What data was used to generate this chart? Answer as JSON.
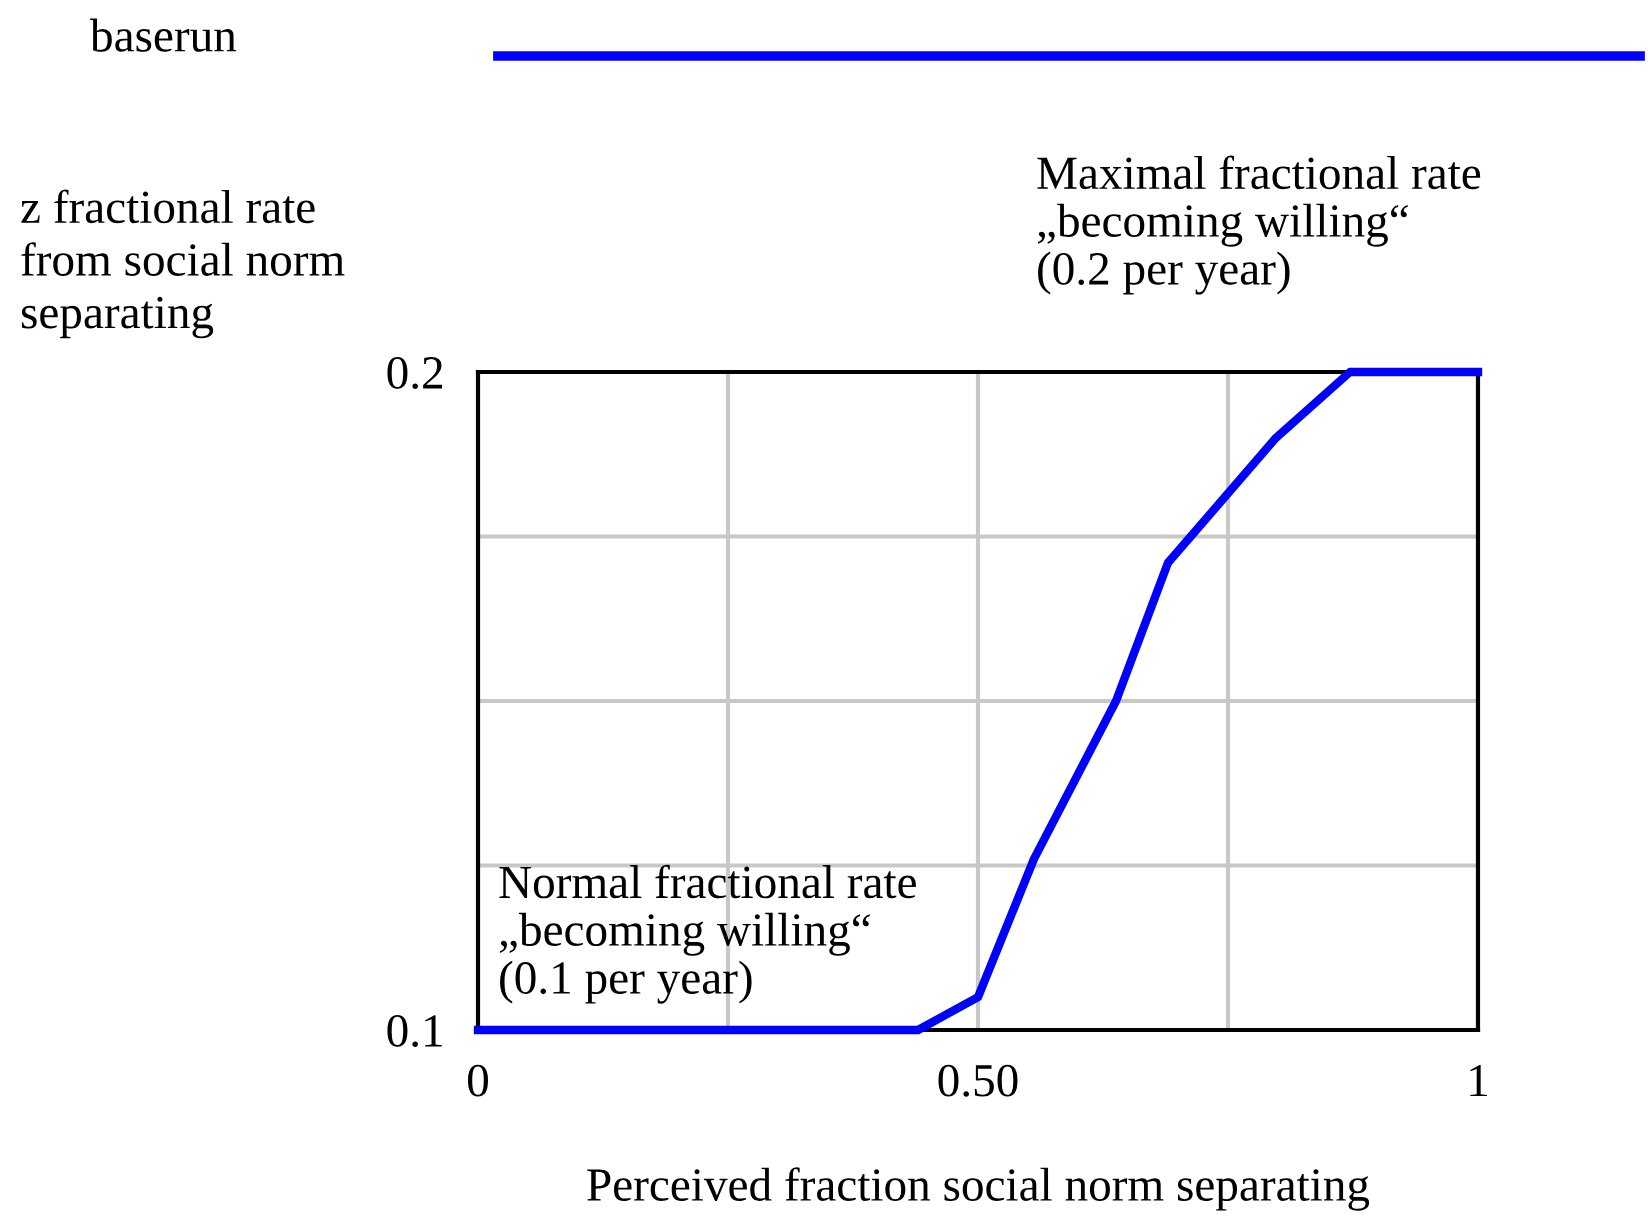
{
  "chart_data": {
    "type": "line",
    "xlabel": "Perceived fraction social norm separating",
    "ylabel": "z fractional rate\nfrom social norm\nseparating",
    "annotations": [
      "Maximal fractional rate\n„becoming willing“\n(0.2 per year)",
      "Normal fractional rate\n„becoming willing“\n(0.1 per year)"
    ],
    "series": [
      {
        "name": "baserun",
        "color": "#0000ff",
        "x": [
          0,
          0.44,
          0.5,
          0.556,
          0.638,
          0.69,
          0.798,
          0.872,
          1
        ],
        "values": [
          0.1,
          0.1,
          0.105,
          0.126,
          0.15,
          0.171,
          0.19,
          0.2,
          0.2
        ]
      }
    ],
    "xlim": [
      0,
      1
    ],
    "ylim": [
      0.1,
      0.2
    ],
    "xticks": [
      0,
      {
        "value": 0.5,
        "label": "0.50"
      },
      1
    ],
    "yticks": [
      0.1,
      0.2
    ],
    "grid": true,
    "legend": "top",
    "marker": "none",
    "line_style": "solid"
  }
}
